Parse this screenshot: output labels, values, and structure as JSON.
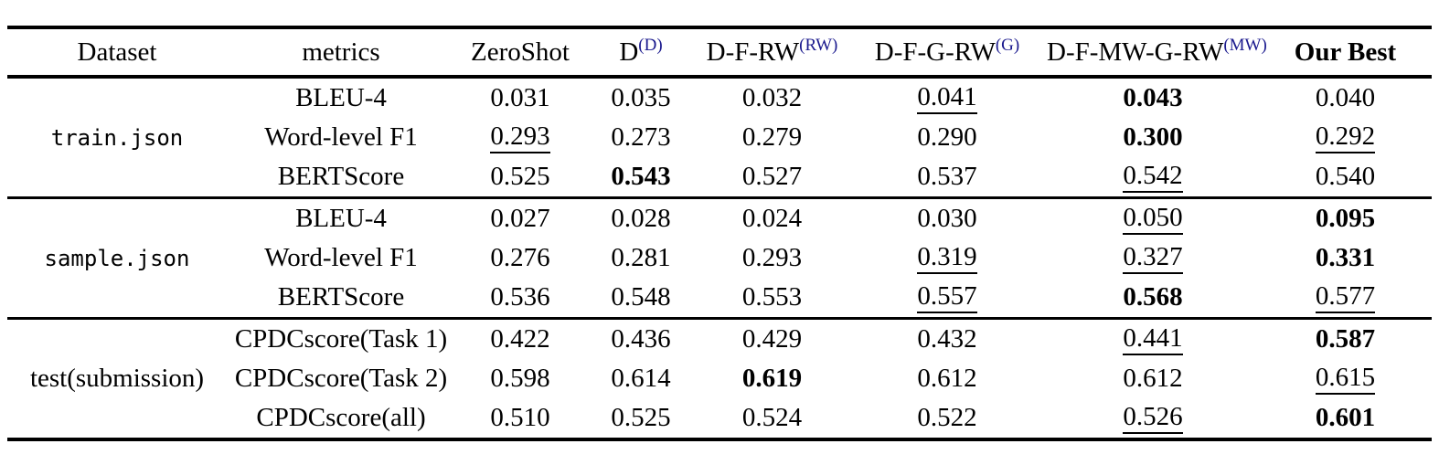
{
  "colors": {
    "background": "#ffffff",
    "text": "#000000",
    "rule": "#000000",
    "superscript": "#1b1a8e"
  },
  "table": {
    "columns": [
      {
        "key": "dataset",
        "label": "Dataset"
      },
      {
        "key": "metrics",
        "label": "metrics"
      },
      {
        "key": "zeroshot",
        "label": "ZeroShot"
      },
      {
        "key": "d",
        "label": "D",
        "sup": "(D)"
      },
      {
        "key": "d-f-rw",
        "label": "D-F-RW",
        "sup": "(RW)"
      },
      {
        "key": "d-f-g-rw",
        "label": "D-F-G-RW",
        "sup": "(G)"
      },
      {
        "key": "d-f-mw-g-rw",
        "label": "D-F-MW-G-RW",
        "sup": "(MW)"
      },
      {
        "key": "our-best",
        "label": "Our Best",
        "bold": true
      }
    ],
    "groups": [
      {
        "dataset": "train.json",
        "code": true,
        "rows": [
          {
            "metric": "BLEU-4",
            "cells": [
              {
                "v": "0.031"
              },
              {
                "v": "0.035"
              },
              {
                "v": "0.032"
              },
              {
                "v": "0.041",
                "underline": true
              },
              {
                "v": "0.043",
                "bold": true
              },
              {
                "v": "0.040"
              }
            ]
          },
          {
            "metric": "Word-level F1",
            "cells": [
              {
                "v": "0.293",
                "underline": true
              },
              {
                "v": "0.273"
              },
              {
                "v": "0.279"
              },
              {
                "v": "0.290"
              },
              {
                "v": "0.300",
                "bold": true
              },
              {
                "v": "0.292",
                "underline": true
              }
            ]
          },
          {
            "metric": "BERTScore",
            "cells": [
              {
                "v": "0.525"
              },
              {
                "v": "0.543",
                "bold": true
              },
              {
                "v": "0.527"
              },
              {
                "v": "0.537"
              },
              {
                "v": "0.542",
                "underline": true
              },
              {
                "v": "0.540"
              }
            ]
          }
        ]
      },
      {
        "dataset": "sample.json",
        "code": true,
        "rows": [
          {
            "metric": "BLEU-4",
            "cells": [
              {
                "v": "0.027"
              },
              {
                "v": "0.028"
              },
              {
                "v": "0.024"
              },
              {
                "v": "0.030"
              },
              {
                "v": "0.050",
                "underline": true
              },
              {
                "v": "0.095",
                "bold": true
              }
            ]
          },
          {
            "metric": "Word-level F1",
            "cells": [
              {
                "v": "0.276"
              },
              {
                "v": "0.281"
              },
              {
                "v": "0.293"
              },
              {
                "v": "0.319",
                "underline": true
              },
              {
                "v": "0.327",
                "underline": true
              },
              {
                "v": "0.331",
                "bold": true
              }
            ]
          },
          {
            "metric": "BERTScore",
            "cells": [
              {
                "v": "0.536"
              },
              {
                "v": "0.548"
              },
              {
                "v": "0.553"
              },
              {
                "v": "0.557",
                "underline": true
              },
              {
                "v": "0.568",
                "bold": true
              },
              {
                "v": "0.577",
                "underline": true
              }
            ]
          }
        ]
      },
      {
        "dataset": "test(submission)",
        "code": false,
        "rows": [
          {
            "metric": "CPDCscore(Task 1)",
            "cells": [
              {
                "v": "0.422"
              },
              {
                "v": "0.436"
              },
              {
                "v": "0.429"
              },
              {
                "v": "0.432"
              },
              {
                "v": "0.441",
                "underline": true
              },
              {
                "v": "0.587",
                "bold": true
              }
            ]
          },
          {
            "metric": "CPDCscore(Task 2)",
            "cells": [
              {
                "v": "0.598"
              },
              {
                "v": "0.614"
              },
              {
                "v": "0.619",
                "bold": true
              },
              {
                "v": "0.612"
              },
              {
                "v": "0.612"
              },
              {
                "v": "0.615",
                "underline": true
              }
            ]
          },
          {
            "metric": "CPDCscore(all)",
            "cells": [
              {
                "v": "0.510"
              },
              {
                "v": "0.525"
              },
              {
                "v": "0.524"
              },
              {
                "v": "0.522"
              },
              {
                "v": "0.526",
                "underline": true
              },
              {
                "v": "0.601",
                "bold": true
              }
            ]
          }
        ]
      }
    ]
  }
}
